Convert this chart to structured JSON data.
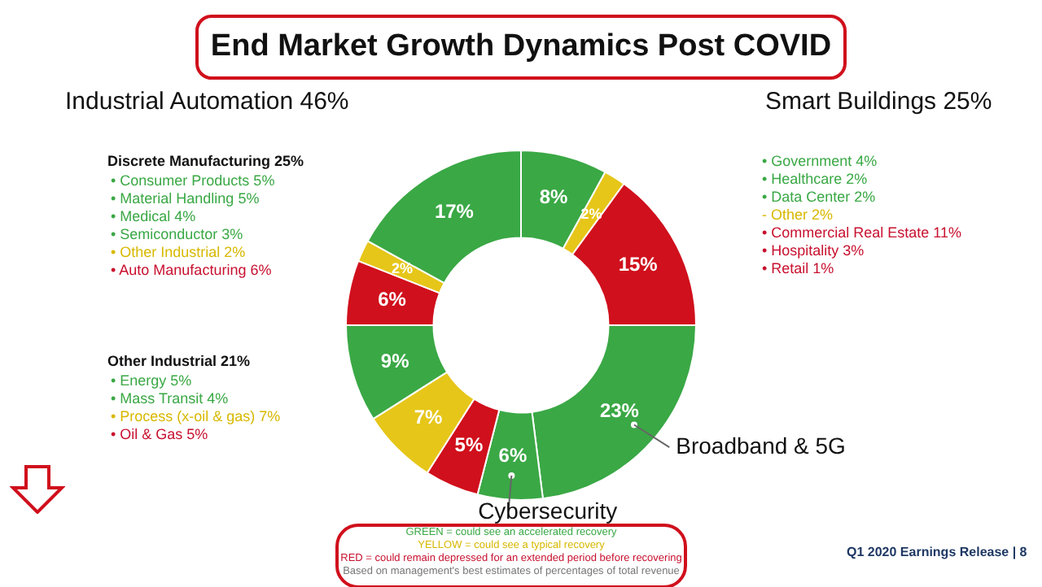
{
  "chart_data": {
    "type": "donut",
    "title": "End Market Growth Dynamics Post COVID",
    "categories": [
      null,
      null,
      null,
      "Broadband & 5G",
      "Cybersecurity",
      null,
      null,
      null,
      null,
      null,
      null
    ],
    "values": [
      8,
      2,
      15,
      23,
      6,
      5,
      7,
      9,
      6,
      2,
      17
    ],
    "value_labels": [
      "8%",
      "2%",
      "15%",
      "23%",
      "6%",
      "5%",
      "7%",
      "9%",
      "6%",
      "2%",
      "17%"
    ],
    "colors": [
      "#3aa845",
      "#e6c619",
      "#d0101c",
      "#3aa845",
      "#3aa845",
      "#d0101c",
      "#e6c619",
      "#3aa845",
      "#d0101c",
      "#e6c619",
      "#3aa845"
    ],
    "annotations": [
      "Industrial Automation 46%",
      "Discrete Manufacturing  25%",
      "• Consumer Products 5%",
      "• Material Handling 5%",
      "• Medical 4%",
      "• Semiconductor 3%",
      "• Other Industrial 2%",
      "• Auto Manufacturing 6%",
      "Other Industrial 21%",
      "• Energy 5%",
      "• Mass Transit 4%",
      "• Process (x-oil & gas) 7%",
      "• Oil & Gas 5%",
      "Smart Buildings  25%",
      "• Government 4%",
      "• Healthcare 2%",
      "• Data Center 2%",
      "- Other 2%",
      "• Commercial Real Estate 11%",
      "• Hospitality 3%",
      "• Retail 1%",
      "GREEN = could see an accelerated recovery",
      "YELLOW = could see a typical recovery",
      "RED = could remain depressed for an extended period before recovering",
      "Based on management's best estimates of percentages of total revenue",
      "Q1 2020 Earnings Release |   8"
    ]
  }
}
